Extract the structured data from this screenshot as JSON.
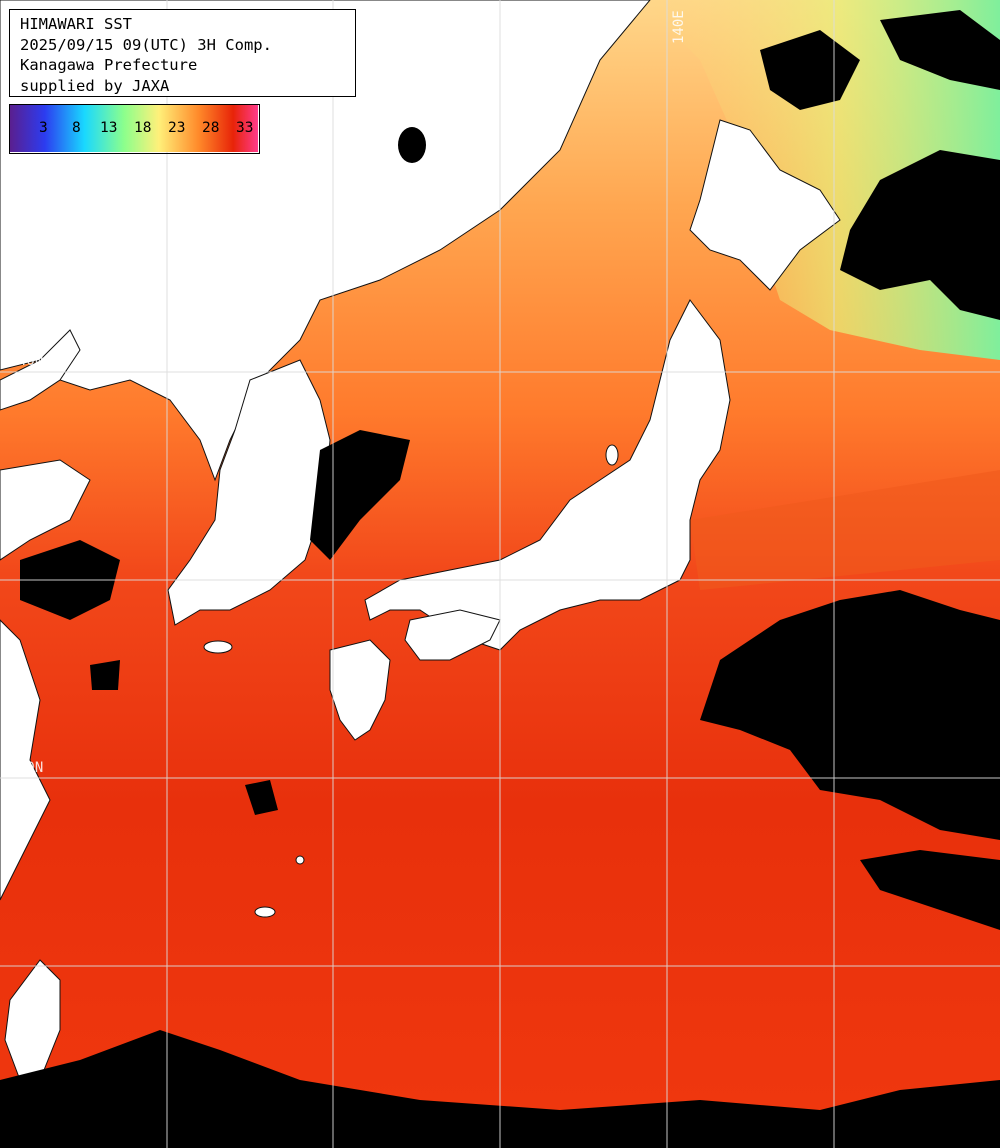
{
  "title_box": {
    "line1": "HIMAWARI SST",
    "line2": "2025/09/15 09(UTC) 3H Comp.",
    "line3": "Kanagawa Prefecture",
    "line4": "supplied by JAXA"
  },
  "legend": {
    "ticks": [
      "3",
      "8",
      "13",
      "18",
      "23",
      "28",
      "33"
    ],
    "colors": [
      "#5a1f8f",
      "#2c3cf0",
      "#19d8ff",
      "#8cff8c",
      "#fff07a",
      "#ff8a2a",
      "#e82408",
      "#ff3b8c"
    ]
  },
  "grid_labels": {
    "lat_40": "40N",
    "lat_30": "30N",
    "lon_140": "140E"
  },
  "palette": {
    "land": "#ffffff",
    "cloud": "#000000",
    "sea_warm": "#e8320c",
    "sea_orange": "#ff8a3a",
    "sea_yellow": "#ffd27a",
    "sea_green": "#8cf08c",
    "grid": "#dcdcdc"
  }
}
